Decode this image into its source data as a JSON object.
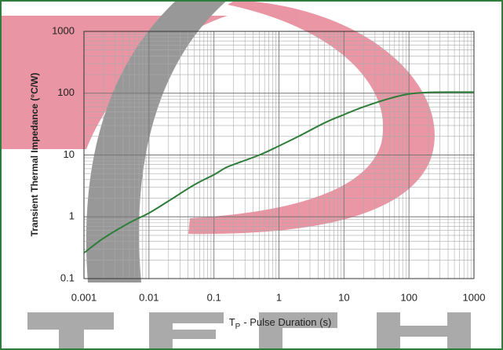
{
  "chart_data": {
    "type": "line",
    "ylabel": "Transient Thermal Impedance (°C/W)",
    "xlabel_symbol": "T",
    "xlabel_subscript": "P",
    "xlabel_text": "- Pulse Duration (s)",
    "x": [
      0.001,
      0.002,
      0.005,
      0.01,
      0.02,
      0.05,
      0.1,
      0.15,
      0.2,
      0.5,
      1,
      2,
      5,
      10,
      20,
      50,
      100,
      200,
      500,
      1000
    ],
    "values": [
      0.26,
      0.45,
      0.8,
      1.15,
      1.8,
      3.3,
      4.8,
      6.2,
      7,
      10,
      14,
      20,
      33,
      45,
      60,
      82,
      97,
      103,
      104,
      104
    ],
    "color": "#2f7d3a",
    "xlim": [
      0.001,
      1000
    ],
    "ylim": [
      0.1,
      1000
    ],
    "xticks": [
      0.001,
      0.01,
      0.1,
      1,
      10,
      100,
      1000
    ],
    "yticks": [
      0.1,
      1,
      10,
      100,
      1000
    ],
    "xscale": "log",
    "yscale": "log",
    "grid": true
  }
}
